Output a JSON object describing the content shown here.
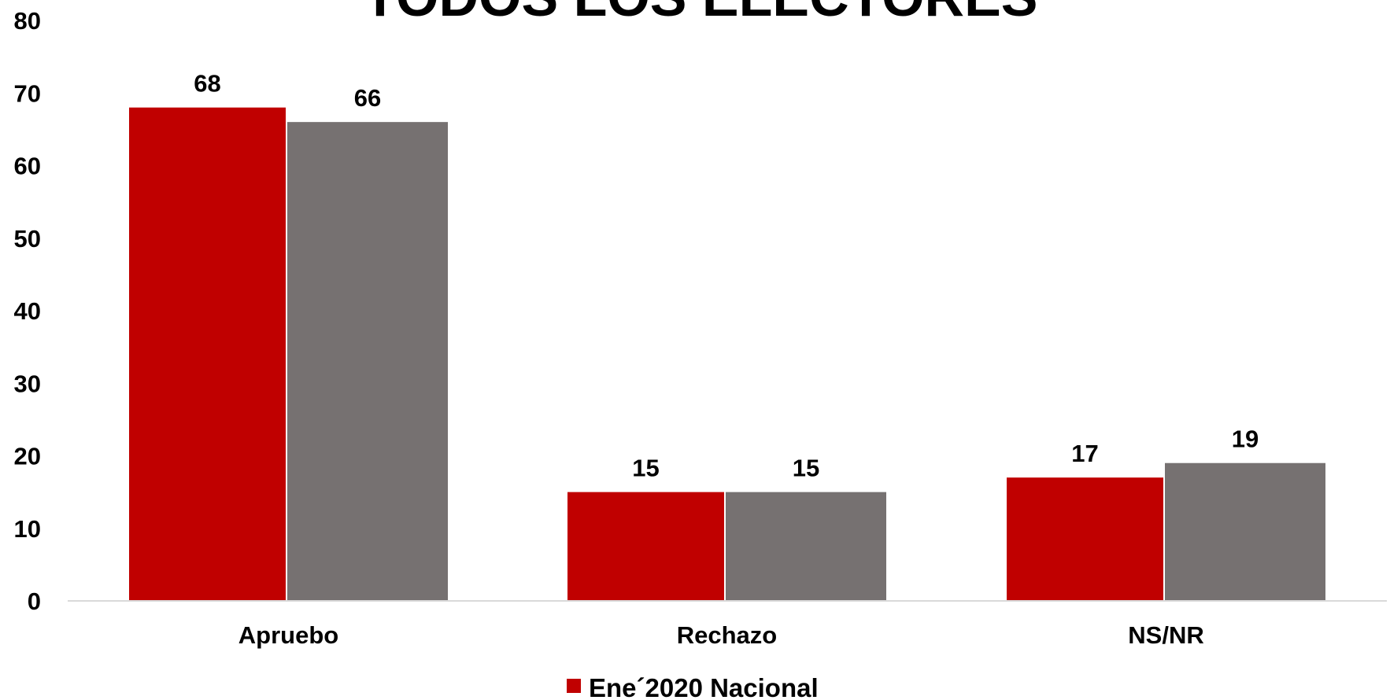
{
  "chart_data": {
    "type": "bar",
    "title": "TODOS LOS ELECTORES",
    "categories": [
      "Apruebo",
      "Rechazo",
      "NS/NR"
    ],
    "series": [
      {
        "name": "Ene´2020 Nacional",
        "values": [
          68,
          15,
          17
        ],
        "color": "#c00000"
      },
      {
        "values": [
          66,
          15,
          19
        ],
        "color": "#767171"
      }
    ],
    "ylim": [
      0,
      80
    ],
    "yticks": [
      0,
      10,
      20,
      30,
      40,
      50,
      60,
      70,
      80
    ],
    "grid": false,
    "legend": "bottom",
    "axis_color": "#d9d9d9"
  }
}
